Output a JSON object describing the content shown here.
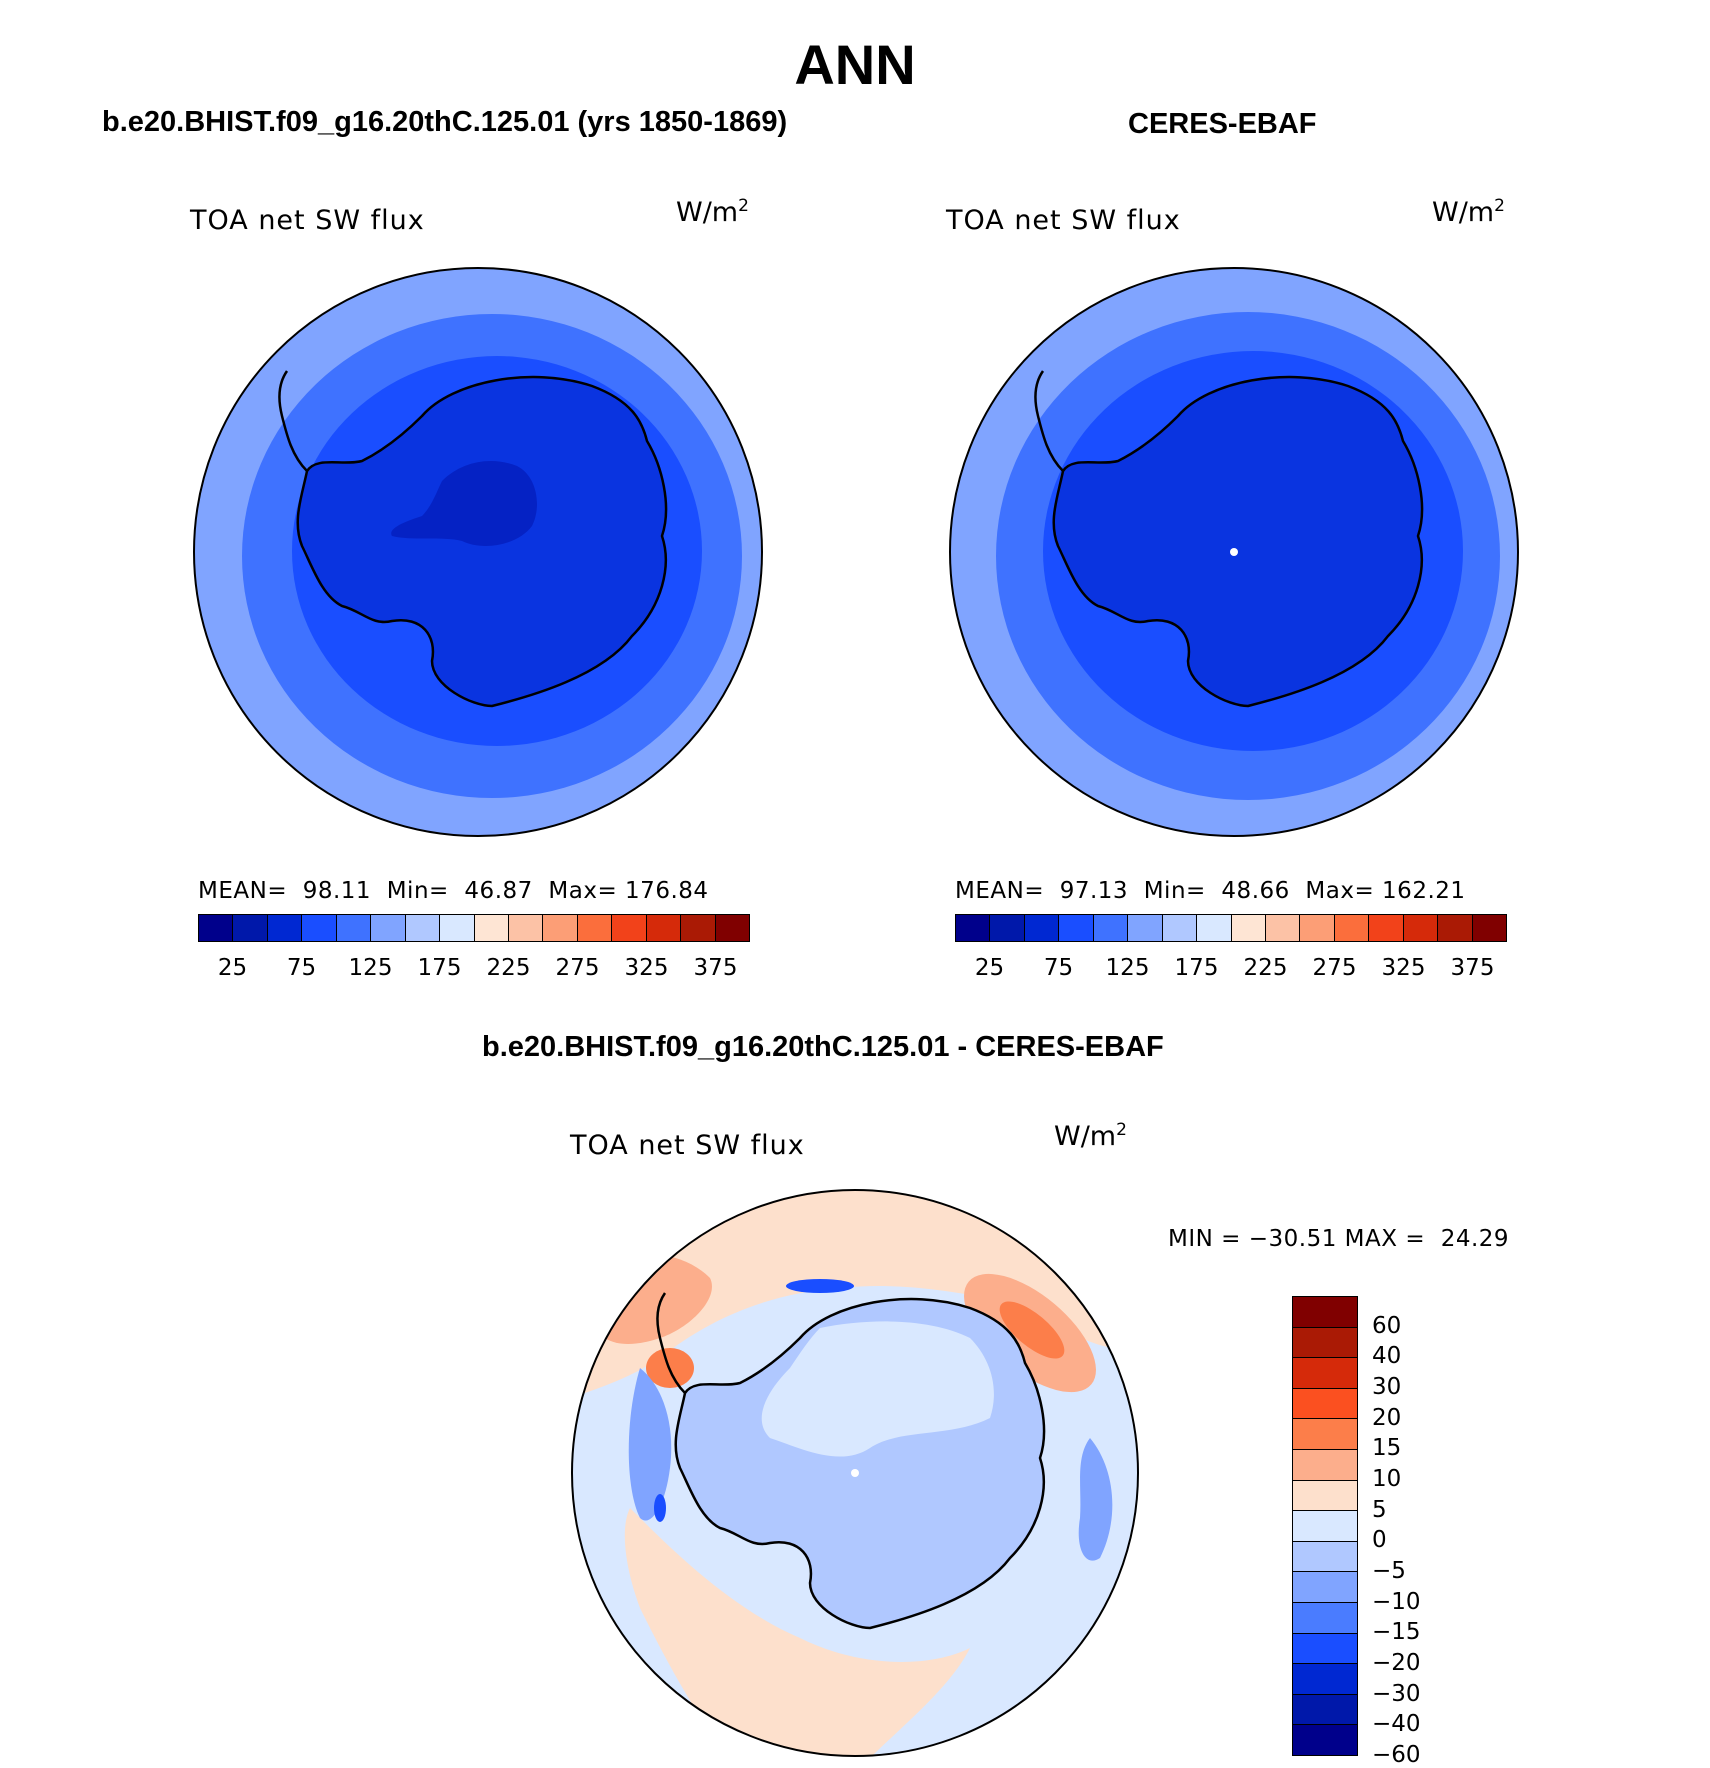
{
  "figure": {
    "title": "ANN"
  },
  "panels": [
    {
      "case_title": "b.e20.BHIST.f09_g16.20thC.125.01 (yrs 1850-1869)",
      "variable_label": "TOA net SW flux",
      "units": "W/m",
      "units_exp": "2",
      "stats": {
        "mean_label": "MEAN=",
        "mean": "98.11",
        "min_label": "Min=",
        "min": "46.87",
        "max_label": "Max=",
        "max": "176.84"
      },
      "fills": {
        "outer": "#80a4ff",
        "ring": "#3f72ff",
        "inner": "#1a4eff",
        "ice": "#0a34e0",
        "core": "#0522c4"
      }
    },
    {
      "case_title": "CERES-EBAF",
      "variable_label": "TOA net SW flux",
      "units": "W/m",
      "units_exp": "2",
      "stats": {
        "mean_label": "MEAN=",
        "mean": "97.13",
        "min_label": "Min=",
        "min": "48.66",
        "max_label": "Max=",
        "max": "162.21"
      },
      "fills": {
        "outer": "#80a4ff",
        "ring": "#3f72ff",
        "inner": "#1a4eff",
        "ice": "#0a34e0",
        "core": "#0a34e0"
      }
    }
  ],
  "shared_colorbar": {
    "colors": [
      "#00008b",
      "#0018aa",
      "#0028d2",
      "#1a4eff",
      "#3f72ff",
      "#80a4ff",
      "#b0c8ff",
      "#d9e8ff",
      "#fee5d4",
      "#fcc2a6",
      "#fc9e76",
      "#fb6e3c",
      "#f2421a",
      "#d52a0a",
      "#aa1a05",
      "#800000"
    ],
    "tick_labels": [
      "25",
      "75",
      "125",
      "175",
      "225",
      "275",
      "325",
      "375"
    ]
  },
  "difference_panel": {
    "title": "b.e20.BHIST.f09_g16.20thC.125.01 - CERES-EBAF",
    "variable_label": "TOA net SW flux",
    "units": "W/m",
    "units_exp": "2",
    "stats": {
      "min_label": "MIN =",
      "min": "−30.51",
      "max_label": "MAX =",
      "max": "24.29"
    },
    "colorbar": {
      "colors_top_to_bottom": [
        "#800000",
        "#aa1a05",
        "#d52a0a",
        "#fb5020",
        "#fc7e4a",
        "#fcae8c",
        "#fde0cc",
        "#d9e8ff",
        "#b0c8ff",
        "#80a4ff",
        "#4a7cff",
        "#1a4eff",
        "#0028d2",
        "#0018aa",
        "#00008b"
      ],
      "tick_labels": [
        "60",
        "40",
        "30",
        "20",
        "15",
        "10",
        "5",
        "0",
        "−5",
        "−10",
        "−15",
        "−20",
        "−30",
        "−40",
        "−60"
      ]
    },
    "fills": {
      "background": "#d9e8ff",
      "pos1": "#fde0cc",
      "pos2": "#fcae8c",
      "pos3": "#fc7e4a",
      "neg1": "#b0c8ff",
      "neg2": "#80a4ff",
      "neg3": "#1a4eff"
    }
  }
}
